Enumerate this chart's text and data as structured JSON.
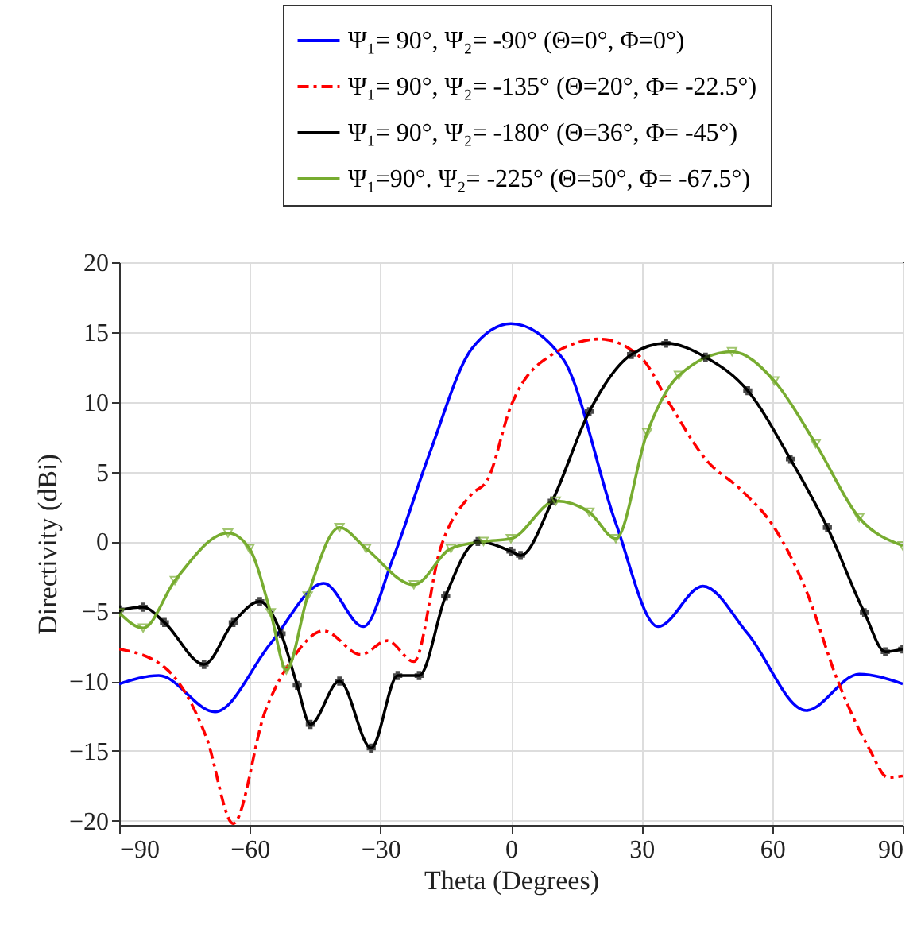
{
  "chart_data": {
    "type": "line",
    "xlabel": "Theta (Degrees)",
    "ylabel": "Directivity (dBi)",
    "xlim": [
      -90,
      90
    ],
    "ylim": [
      -20.3,
      20
    ],
    "xticks": [
      -90,
      -60,
      -30,
      0,
      30,
      60,
      90
    ],
    "yticks": [
      -20,
      -15,
      -10,
      -5,
      0,
      5,
      10,
      15,
      20
    ],
    "grid": true,
    "legend": "top",
    "series": [
      {
        "name": "Ψ₁= 90°, Ψ₂= -90° (Θ=0°, Φ=0°)",
        "color": "#0000ff",
        "line_style": "solid",
        "marker": "none",
        "x": [
          -90,
          -80.9,
          -68,
          -55.2,
          -43,
          -33.9,
          -27.2,
          -18.7,
          -9,
          0,
          11.9,
          24,
          33.8,
          44.1,
          54.4,
          67.8,
          80,
          90
        ],
        "values": [
          -10.2,
          -9.6,
          -12.2,
          -7.3,
          -3.0,
          -6.1,
          -1.3,
          6.3,
          13.8,
          15.6,
          13.1,
          1.4,
          -6.1,
          -3.2,
          -6.6,
          -12.1,
          -9.5,
          -10.2
        ]
      },
      {
        "name": "Ψ₁= 90°, Ψ₂= -135° (Θ=20°, Φ= -22.5°)",
        "color": "#ff0000",
        "line_style": "dashed",
        "marker": "none",
        "x": [
          -90,
          -79.6,
          -69.9,
          -63.8,
          -56.5,
          -50.4,
          -43,
          -34.5,
          -28.4,
          -22.3,
          -16.2,
          -9,
          -5.4,
          0,
          9.5,
          20.4,
          30.1,
          36.2,
          44.7,
          53.2,
          60.5,
          67.8,
          75.1,
          82.4,
          86.6,
          90
        ],
        "values": [
          -7.7,
          -9.0,
          -14.1,
          -20.2,
          -12.2,
          -8.5,
          -6.4,
          -8.1,
          -7.1,
          -8.6,
          -0.5,
          3.4,
          4.4,
          9.7,
          13.4,
          14.5,
          13.1,
          10.0,
          5.9,
          3.6,
          1.0,
          -3.5,
          -10.0,
          -14.9,
          -16.9,
          -16.8
        ]
      },
      {
        "name": "Ψ₁= 90°, Ψ₂= -180° (Θ=36°, Φ= -45°)",
        "color": "#000000",
        "line_style": "solid",
        "marker": "cross",
        "x": [
          -90,
          -84.5,
          -79.6,
          -70.5,
          -63.8,
          -57.7,
          -52.8,
          -49.1,
          -46.1,
          -39.4,
          -32.1,
          -26,
          -21.1,
          -15,
          -7.6,
          0,
          2.2,
          9.5,
          18,
          27.7,
          35.6,
          44.7,
          54.4,
          64.2,
          72.7,
          81.2,
          86,
          90
        ],
        "values": [
          -4.9,
          -4.7,
          -5.8,
          -8.8,
          -5.8,
          -4.3,
          -6.6,
          -10.3,
          -13.1,
          -10.0,
          -14.8,
          -9.6,
          -9.6,
          -3.9,
          0,
          -0.7,
          -1.0,
          2.9,
          9.3,
          13.4,
          14.2,
          13.2,
          10.8,
          5.9,
          1.0,
          -5.1,
          -7.9,
          -7.7
        ]
      },
      {
        "name": "Ψ₁=90°. Ψ₂= -225° (Θ=50°, Φ= -67.5°)",
        "color": "#77ac30",
        "line_style": "solid",
        "marker": "triangle",
        "x": [
          -90,
          -84.5,
          -77.2,
          -65,
          -60.1,
          -55.2,
          -51.6,
          -46.7,
          -39.4,
          -33.3,
          -22.3,
          -13.8,
          -6.3,
          0,
          10.3,
          18,
          24.1,
          31.3,
          38.6,
          50.8,
          60.5,
          70,
          80,
          90
        ],
        "values": [
          -5.1,
          -6.2,
          -2.8,
          0.6,
          -0.5,
          -5.1,
          -9.2,
          -3.9,
          1.0,
          -0.5,
          -3.1,
          -0.5,
          0,
          0.2,
          2.9,
          2.1,
          0.2,
          7.8,
          11.9,
          13.6,
          11.5,
          7.0,
          1.7,
          -0.3
        ]
      }
    ]
  }
}
